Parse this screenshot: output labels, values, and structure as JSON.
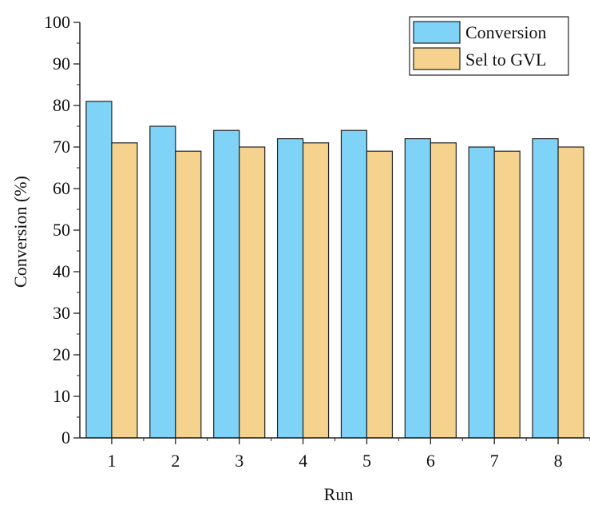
{
  "chart_data": {
    "type": "bar",
    "title": "",
    "xlabel": "Run",
    "ylabel": "Conversion (%)",
    "categories": [
      "1",
      "2",
      "3",
      "4",
      "5",
      "6",
      "7",
      "8"
    ],
    "ylim": [
      0,
      100
    ],
    "yticks": [
      0,
      10,
      20,
      30,
      40,
      50,
      60,
      70,
      80,
      90,
      100
    ],
    "grid": false,
    "legend_position": "top-right",
    "series": [
      {
        "name": "Conversion",
        "color": "#7fd3f7",
        "values": [
          81,
          75,
          74,
          72,
          74,
          72,
          70,
          72
        ]
      },
      {
        "name": "Sel to GVL",
        "color": "#f5d38e",
        "values": [
          71,
          69,
          70,
          71,
          69,
          71,
          69,
          70
        ]
      }
    ]
  }
}
